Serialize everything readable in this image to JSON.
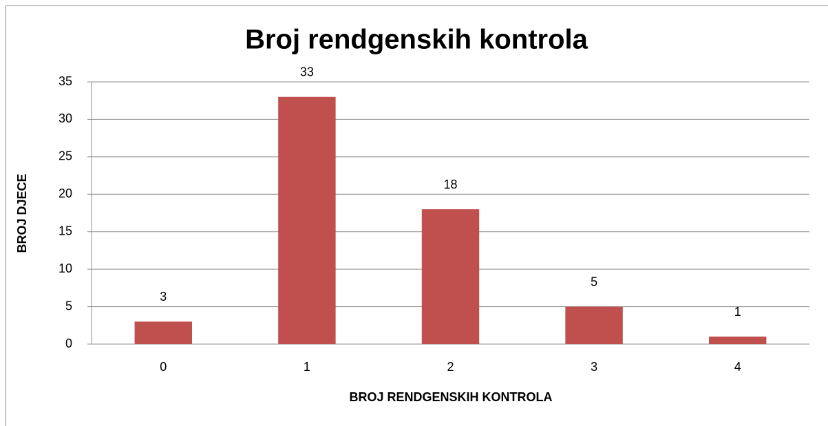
{
  "chart_data": {
    "type": "bar",
    "title": "Broj rendgenskih kontrola",
    "x_label": "BROJ RENDGENSKIH KONTROLA",
    "y_label": "BROJ DJECE",
    "categories": [
      "0",
      "1",
      "2",
      "3",
      "4"
    ],
    "values": [
      3,
      33,
      18,
      5,
      1
    ],
    "color": "#c0504d",
    "ylim": [
      0,
      35
    ],
    "yticks": [
      0,
      5,
      10,
      15,
      20,
      25,
      30,
      35
    ],
    "grid": true
  }
}
